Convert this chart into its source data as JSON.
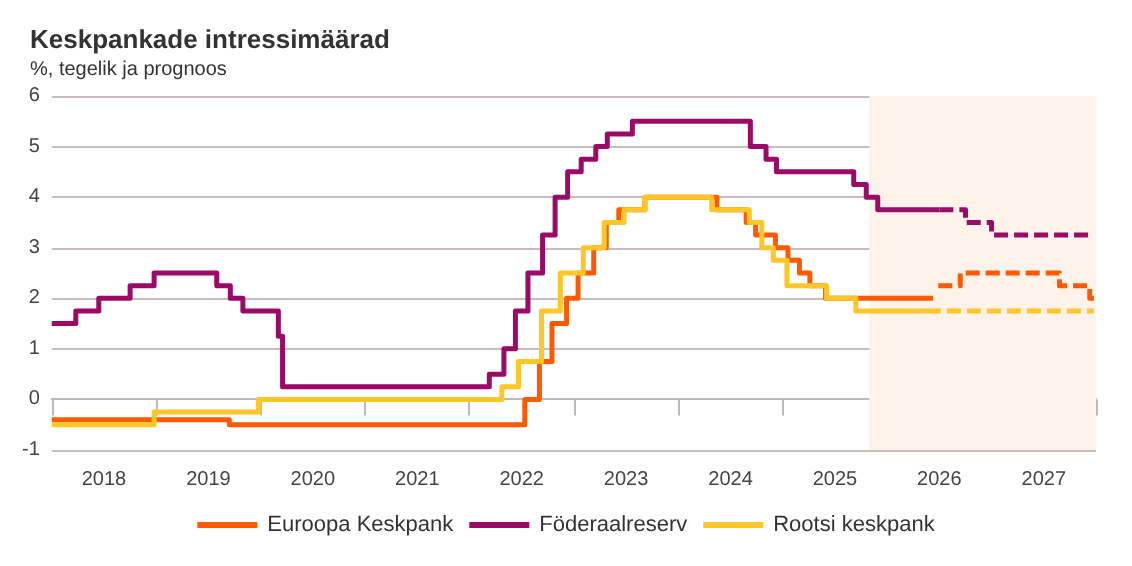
{
  "chart_data": {
    "type": "step",
    "title": "Keskpankade intressimäärad",
    "subtitle": "%, tegelik ja prognoos",
    "xlim": [
      2018,
      2028
    ],
    "ylim": [
      -1,
      6
    ],
    "yticks": [
      -1,
      0,
      1,
      2,
      3,
      4,
      5,
      6
    ],
    "xticks": [
      {
        "value": 2018,
        "label": null
      },
      {
        "value": 2018.5,
        "label": "2018"
      },
      {
        "value": 2019,
        "label": null
      },
      {
        "value": 2019.5,
        "label": "2019"
      },
      {
        "value": 2020,
        "label": null
      },
      {
        "value": 2020.5,
        "label": "2020"
      },
      {
        "value": 2021,
        "label": null
      },
      {
        "value": 2021.5,
        "label": "2021"
      },
      {
        "value": 2022,
        "label": null
      },
      {
        "value": 2022.5,
        "label": "2022"
      },
      {
        "value": 2023,
        "label": null
      },
      {
        "value": 2023.5,
        "label": "2023"
      },
      {
        "value": 2024,
        "label": null
      },
      {
        "value": 2024.5,
        "label": "2024"
      },
      {
        "value": 2025,
        "label": null
      },
      {
        "value": 2025.5,
        "label": "2025"
      },
      {
        "value": 2026,
        "label": null
      },
      {
        "value": 2026.5,
        "label": "2026"
      },
      {
        "value": 2027,
        "label": null
      },
      {
        "value": 2027.5,
        "label": "2027"
      },
      {
        "value": 2028,
        "label": null
      }
    ],
    "grid": "y",
    "legend": "bottom",
    "marker": "none",
    "bands": [
      {
        "axis": "x",
        "from": 2025.83,
        "to": 2028,
        "color": "#fdf3ea"
      }
    ],
    "series": [
      {
        "name": "Euroopa Keskpank",
        "color": "#ff5a00",
        "line_style": "solid",
        "x": [
          2018,
          2019.7,
          2022.53,
          2022.67,
          2022.79,
          2022.93,
          2023.04,
          2023.19,
          2023.31,
          2023.43,
          2023.68,
          2024.37,
          2024.65,
          2024.74,
          2024.93,
          2025.05,
          2025.16,
          2025.26,
          2025.41,
          2026.44
        ],
        "values": [
          -0.4,
          -0.5,
          0,
          0.75,
          1.5,
          2,
          2.5,
          3,
          3.5,
          3.75,
          4,
          3.75,
          3.5,
          3.25,
          3,
          2.75,
          2.5,
          2.25,
          2,
          2
        ]
      },
      {
        "name": "Föderaalreserv",
        "color": "#9b0a67",
        "line_style": "solid",
        "x": [
          2018,
          2018.23,
          2018.45,
          2018.75,
          2018.98,
          2019.58,
          2019.71,
          2019.83,
          2020.17,
          2020.21,
          2022.19,
          2022.33,
          2022.44,
          2022.56,
          2022.7,
          2022.82,
          2022.94,
          2023.07,
          2023.21,
          2023.32,
          2023.56,
          2024.69,
          2024.84,
          2024.94,
          2025.68,
          2025.8,
          2025.91,
          2026.5
        ],
        "values": [
          1.5,
          1.75,
          2,
          2.25,
          2.5,
          2.25,
          2,
          1.75,
          1.25,
          0.25,
          0.5,
          1,
          1.75,
          2.5,
          3.25,
          4,
          4.5,
          4.75,
          5,
          5.25,
          5.5,
          5,
          4.75,
          4.5,
          4.25,
          4,
          3.75,
          3.75
        ]
      },
      {
        "name": "Rootsi keskpank",
        "color": "#ffc627",
        "line_style": "solid",
        "x": [
          2018,
          2018.98,
          2019.98,
          2022.31,
          2022.47,
          2022.69,
          2022.87,
          2023.09,
          2023.29,
          2023.48,
          2023.68,
          2024.32,
          2024.68,
          2024.8,
          2024.91,
          2025.04,
          2025.42,
          2025.7,
          2026.38
        ],
        "values": [
          -0.5,
          -0.25,
          0,
          0.25,
          0.75,
          1.75,
          2.5,
          3,
          3.5,
          3.75,
          4,
          3.75,
          3.5,
          3,
          2.75,
          2.25,
          2,
          1.75,
          1.75
        ]
      },
      {
        "color": "#ff5a00",
        "line_style": "dashed",
        "x": [
          2026.49,
          2026.7,
          2027.65,
          2027.94,
          2027.98
        ],
        "values": [
          2.25,
          2.5,
          2.25,
          2,
          2
        ]
      },
      {
        "color": "#9b0a67",
        "line_style": "dashed",
        "x": [
          2026.5,
          2026.75,
          2027.0,
          2027.98
        ],
        "values": [
          3.75,
          3.5,
          3.25,
          3.25
        ]
      },
      {
        "color": "#ffc627",
        "line_style": "dashed",
        "x": [
          2026.38,
          2027.98
        ],
        "values": [
          1.75,
          1.75
        ]
      }
    ]
  }
}
